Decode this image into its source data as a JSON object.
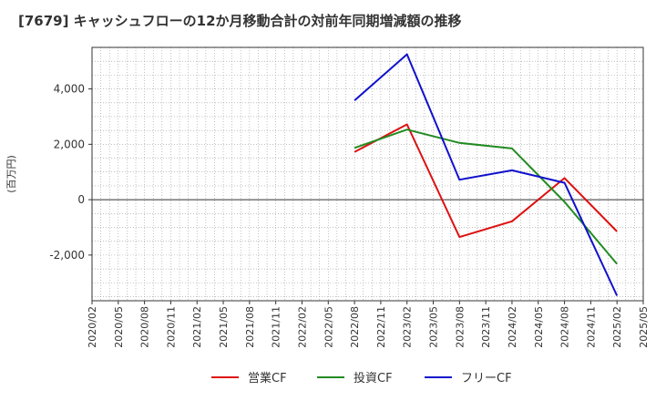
{
  "chart_data": {
    "type": "line",
    "title": "[7679]  キャッシュフローの12か月移動合計の対前年同期増減額の推移",
    "ylabel": "(百万円)",
    "xlabel": "",
    "ylim": [
      -3650,
      5500
    ],
    "yticks": [
      4000,
      2000,
      0,
      -2000
    ],
    "ytick_labels": [
      "4,000",
      "2,000",
      "0",
      "-2,000"
    ],
    "x_tick_labels": [
      "2020/02",
      "2020/05",
      "2020/08",
      "2020/11",
      "2021/02",
      "2021/05",
      "2021/08",
      "2021/11",
      "2022/02",
      "2022/05",
      "2022/08",
      "2022/11",
      "2023/02",
      "2023/05",
      "2023/08",
      "2023/11",
      "2024/02",
      "2024/05",
      "2024/08",
      "2024/11",
      "2025/02",
      "2025/05"
    ],
    "grid": true,
    "legend_position": "bottom",
    "series": [
      {
        "name": "営業CF",
        "color": "#dd1111",
        "x": [
          "2022/08",
          "2023/02",
          "2023/08",
          "2024/02",
          "2024/08",
          "2025/02"
        ],
        "values": [
          1720,
          2720,
          -1350,
          -780,
          780,
          -1150
        ]
      },
      {
        "name": "投資CF",
        "color": "#228b22",
        "x": [
          "2022/08",
          "2023/02",
          "2023/08",
          "2024/02",
          "2024/08",
          "2025/02"
        ],
        "values": [
          1870,
          2530,
          2050,
          1850,
          -80,
          -2320
        ]
      },
      {
        "name": "フリーCF",
        "color": "#1111cc",
        "x": [
          "2022/08",
          "2023/02",
          "2023/08",
          "2024/02",
          "2024/08",
          "2025/02"
        ],
        "values": [
          3580,
          5250,
          720,
          1060,
          610,
          -3470
        ]
      }
    ]
  }
}
